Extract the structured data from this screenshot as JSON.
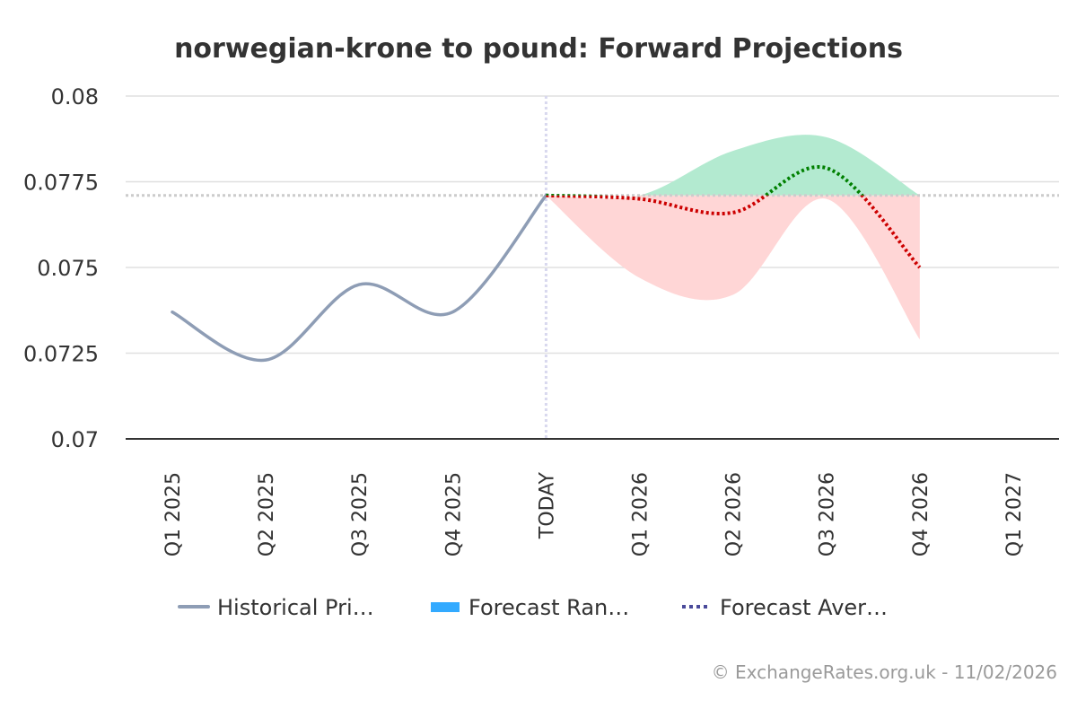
{
  "chart_data": {
    "type": "line",
    "title": "norwegian-krone to pound: Forward Projections",
    "xlabel": "",
    "ylabel": "",
    "categories": [
      "Q1 2025",
      "Q2 2025",
      "Q3 2025",
      "Q4 2025",
      "TODAY",
      "Q1 2026",
      "Q2 2026",
      "Q3 2026",
      "Q4 2026",
      "Q1 2027"
    ],
    "ylim": [
      0.07,
      0.08
    ],
    "yticks": [
      0.07,
      0.0725,
      0.075,
      0.0775,
      0.08
    ],
    "ytick_labels": [
      "0.07",
      "0.0725",
      "0.075",
      "0.0775",
      "0.08"
    ],
    "grid": true,
    "today_value": 0.0771,
    "series": [
      {
        "name": "Historical Pri…",
        "style": "solid",
        "color": "#8e9db5",
        "x": [
          "Q1 2025",
          "Q2 2025",
          "Q3 2025",
          "Q4 2025",
          "TODAY"
        ],
        "values": [
          0.0737,
          0.0723,
          0.0745,
          0.0737,
          0.0771
        ]
      },
      {
        "name": "Forecast Ran…",
        "type": "area-range",
        "color": "#33aaff",
        "x": [
          "TODAY",
          "Q1 2026",
          "Q2 2026",
          "Q3 2026",
          "Q4 2026"
        ],
        "low": [
          0.0771,
          0.0747,
          0.0742,
          0.077,
          0.0729
        ],
        "high": [
          0.0771,
          0.0771,
          0.0784,
          0.0788,
          0.0771
        ],
        "above_color": "#b3ead0",
        "below_color": "#ffd6d6"
      },
      {
        "name": "Forecast Aver…",
        "style": "dotted",
        "color": "#4a4a9a",
        "x": [
          "TODAY",
          "Q1 2026",
          "Q2 2026",
          "Q3 2026",
          "Q4 2026"
        ],
        "values": [
          0.0771,
          0.077,
          0.0766,
          0.0779,
          0.075
        ],
        "up_color": "#008000",
        "down_color": "#cc0000"
      }
    ],
    "legend_position": "bottom"
  },
  "credit": "© ExchangeRates.org.uk - 11/02/2026"
}
